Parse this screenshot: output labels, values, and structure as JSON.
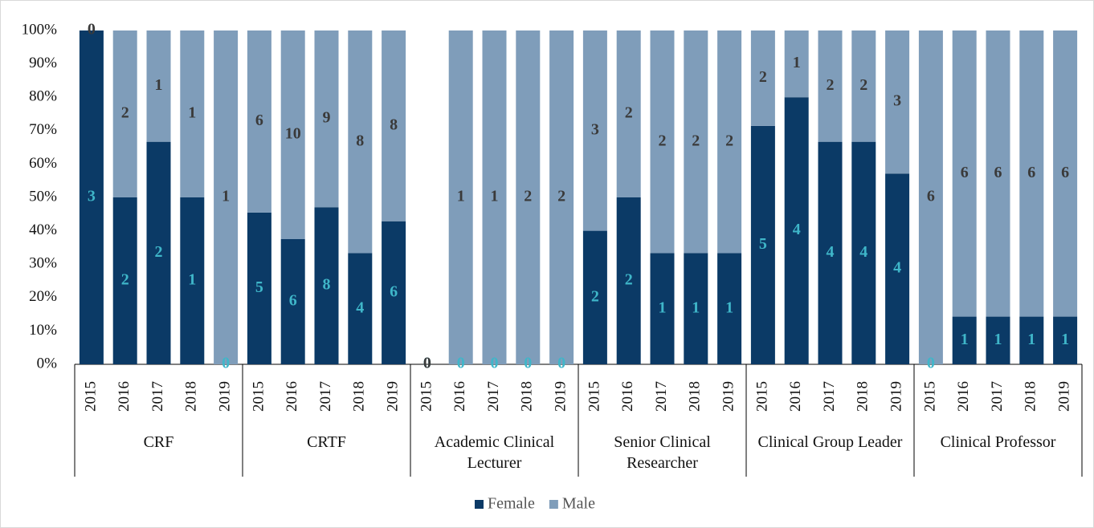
{
  "chart_data": {
    "type": "bar",
    "stacked": true,
    "percent": true,
    "categories": [
      "2015",
      "2016",
      "2017",
      "2018",
      "2019",
      "2015",
      "2016",
      "2017",
      "2018",
      "2019",
      "2015",
      "2016",
      "2017",
      "2018",
      "2019",
      "2015",
      "2016",
      "2017",
      "2018",
      "2019",
      "2015",
      "2016",
      "2017",
      "2018",
      "2019",
      "2015",
      "2016",
      "2017",
      "2018",
      "2019"
    ],
    "groups": [
      "CRF",
      "CRTF",
      "Academic Clinical Lecturer",
      "Senior Clinical Researcher",
      "Clinical Group Leader",
      "Clinical Professor"
    ],
    "series": [
      {
        "name": "Female",
        "color": "#0b3a66",
        "label_color": "#3fb6c9",
        "values": [
          3,
          2,
          2,
          1,
          0,
          5,
          6,
          8,
          4,
          6,
          0,
          0,
          0,
          0,
          0,
          2,
          2,
          1,
          1,
          1,
          5,
          4,
          4,
          4,
          4,
          0,
          1,
          1,
          1,
          1
        ]
      },
      {
        "name": "Male",
        "color": "#7f9dba",
        "label_color": "#3a3a3a",
        "values": [
          0,
          2,
          1,
          1,
          1,
          6,
          10,
          9,
          8,
          8,
          0,
          1,
          1,
          2,
          2,
          3,
          2,
          2,
          2,
          2,
          2,
          1,
          2,
          2,
          3,
          6,
          6,
          6,
          6,
          6
        ]
      }
    ],
    "ylim": [
      0,
      100
    ],
    "yticks": [
      {
        "value": 0,
        "label": "0%"
      },
      {
        "value": 10,
        "label": "10%"
      },
      {
        "value": 20,
        "label": "20%"
      },
      {
        "value": 30,
        "label": "30%"
      },
      {
        "value": 40,
        "label": "40%"
      },
      {
        "value": 50,
        "label": "50%"
      },
      {
        "value": 60,
        "label": "60%"
      },
      {
        "value": 70,
        "label": "70%"
      },
      {
        "value": 80,
        "label": "80%"
      },
      {
        "value": 90,
        "label": "90%"
      },
      {
        "value": 100,
        "label": "100%"
      }
    ],
    "legend": "bottom"
  }
}
